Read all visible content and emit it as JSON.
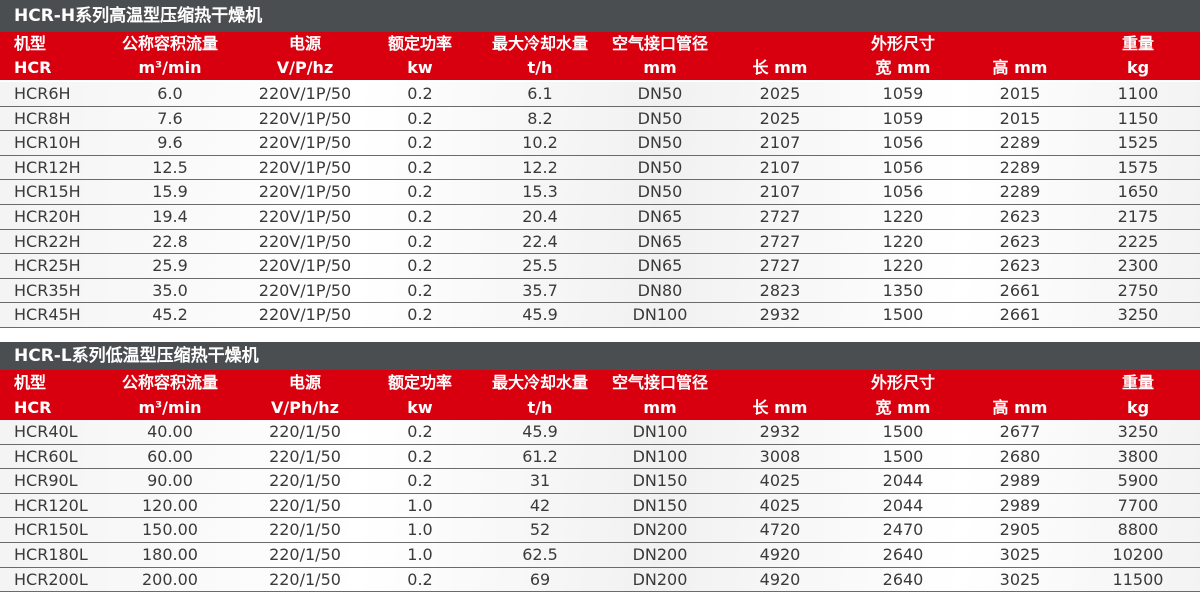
{
  "colors": {
    "title_bg": "#4b4e51",
    "header_bg": "#d8000f",
    "header_text": "#ffffff",
    "row_text": "#3a3a3a"
  },
  "sections": [
    {
      "title": "HCR-H系列高温型压缩热干燥机",
      "header1": [
        "机型",
        "公称容积流量",
        "电源",
        "额定功率",
        "最大冷却水量",
        "空气接口管径",
        "",
        "外形尺寸",
        "",
        "重量"
      ],
      "header2": [
        "HCR",
        "m³/min",
        "V/P/hz",
        "kw",
        "t/h",
        "mm",
        "长 mm",
        "宽 mm",
        "高 mm",
        "kg"
      ],
      "rows": [
        [
          "HCR6H",
          "6.0",
          "220V/1P/50",
          "0.2",
          "6.1",
          "DN50",
          "2025",
          "1059",
          "2015",
          "1100"
        ],
        [
          "HCR8H",
          "7.6",
          "220V/1P/50",
          "0.2",
          "8.2",
          "DN50",
          "2025",
          "1059",
          "2015",
          "1150"
        ],
        [
          "HCR10H",
          "9.6",
          "220V/1P/50",
          "0.2",
          "10.2",
          "DN50",
          "2107",
          "1056",
          "2289",
          "1525"
        ],
        [
          "HCR12H",
          "12.5",
          "220V/1P/50",
          "0.2",
          "12.2",
          "DN50",
          "2107",
          "1056",
          "2289",
          "1575"
        ],
        [
          "HCR15H",
          "15.9",
          "220V/1P/50",
          "0.2",
          "15.3",
          "DN50",
          "2107",
          "1056",
          "2289",
          "1650"
        ],
        [
          "HCR20H",
          "19.4",
          "220V/1P/50",
          "0.2",
          "20.4",
          "DN65",
          "2727",
          "1220",
          "2623",
          "2175"
        ],
        [
          "HCR22H",
          "22.8",
          "220V/1P/50",
          "0.2",
          "22.4",
          "DN65",
          "2727",
          "1220",
          "2623",
          "2225"
        ],
        [
          "HCR25H",
          "25.9",
          "220V/1P/50",
          "0.2",
          "25.5",
          "DN65",
          "2727",
          "1220",
          "2623",
          "2300"
        ],
        [
          "HCR35H",
          "35.0",
          "220V/1P/50",
          "0.2",
          "35.7",
          "DN80",
          "2823",
          "1350",
          "2661",
          "2750"
        ],
        [
          "HCR45H",
          "45.2",
          "220V/1P/50",
          "0.2",
          "45.9",
          "DN100",
          "2932",
          "1500",
          "2661",
          "3250"
        ]
      ]
    },
    {
      "title": "HCR-L系列低温型压缩热干燥机",
      "header1": [
        "机型",
        "公称容积流量",
        "电源",
        "额定功率",
        "最大冷却水量",
        "空气接口管径",
        "",
        "外形尺寸",
        "",
        "重量"
      ],
      "header2": [
        "HCR",
        "m³/min",
        "V/Ph/hz",
        "kw",
        "t/h",
        "mm",
        "长 mm",
        "宽 mm",
        "高 mm",
        "kg"
      ],
      "rows": [
        [
          "HCR40L",
          "40.00",
          "220/1/50",
          "0.2",
          "45.9",
          "DN100",
          "2932",
          "1500",
          "2677",
          "3250"
        ],
        [
          "HCR60L",
          "60.00",
          "220/1/50",
          "0.2",
          "61.2",
          "DN100",
          "3008",
          "1500",
          "2680",
          "3800"
        ],
        [
          "HCR90L",
          "90.00",
          "220/1/50",
          "0.2",
          "31",
          "DN150",
          "4025",
          "2044",
          "2989",
          "5900"
        ],
        [
          "HCR120L",
          "120.00",
          "220/1/50",
          "1.0",
          "42",
          "DN150",
          "4025",
          "2044",
          "2989",
          "7700"
        ],
        [
          "HCR150L",
          "150.00",
          "220/1/50",
          "1.0",
          "52",
          "DN200",
          "4720",
          "2470",
          "2905",
          "8800"
        ],
        [
          "HCR180L",
          "180.00",
          "220/1/50",
          "1.0",
          "62.5",
          "DN200",
          "4920",
          "2640",
          "3025",
          "10200"
        ],
        [
          "HCR200L",
          "200.00",
          "220/1/50",
          "0.2",
          "69",
          "DN200",
          "4920",
          "2640",
          "3025",
          "11500"
        ]
      ]
    }
  ]
}
